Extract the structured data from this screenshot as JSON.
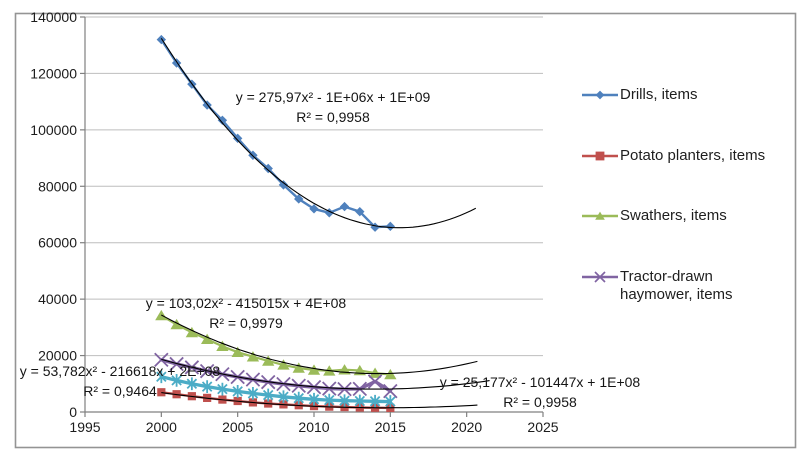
{
  "chart_data": {
    "type": "line",
    "title": "",
    "xlabel": "",
    "ylabel": "",
    "xlim": [
      1995,
      2025
    ],
    "ylim": [
      0,
      140000
    ],
    "grid": true,
    "legend_position": "right",
    "x_ticks": [
      "1995",
      "2000",
      "2005",
      "2010",
      "2015",
      "2020",
      "2025"
    ],
    "y_ticks": [
      "0",
      "20000",
      "40000",
      "60000",
      "80000",
      "100000",
      "120000",
      "140000"
    ],
    "y_tick_values": [
      0,
      20000,
      40000,
      60000,
      80000,
      100000,
      120000,
      140000
    ],
    "x_tick_values": [
      1995,
      2000,
      2005,
      2010,
      2015,
      2020,
      2025
    ],
    "years": [
      2000,
      2001,
      2002,
      2003,
      2004,
      2005,
      2006,
      2007,
      2008,
      2009,
      2010,
      2011,
      2012,
      2013,
      2014,
      2015
    ],
    "trendline_color": "#000000",
    "series": [
      {
        "name": "Drills, items",
        "color": "#4F81BD",
        "marker": "diamond",
        "in_legend": true,
        "line_width": 2.4,
        "values": [
          132000,
          123700,
          116200,
          108800,
          103400,
          97000,
          91000,
          86300,
          80500,
          75500,
          72000,
          70600,
          72800,
          71000,
          65500,
          65800
        ],
        "trendline": {
          "a": 276,
          "vertex_x": 2015.6,
          "vertex_y": 65300,
          "x_start": 2000,
          "x_end": 2020.6
        }
      },
      {
        "name": "Potato planters, items",
        "color": "#C0504D",
        "marker": "square",
        "in_legend": true,
        "line_width": 2.4,
        "values": [
          7000,
          6300,
          5600,
          5000,
          4400,
          3900,
          3400,
          3000,
          2700,
          2400,
          2100,
          1900,
          1750,
          1600,
          1500,
          1450
        ],
        "trendline": {
          "a": 25.2,
          "vertex_x": 2014.6,
          "vertex_y": 1500,
          "x_start": 2000,
          "x_end": 2020.7
        }
      },
      {
        "name": "Swathers, items",
        "color": "#9BBB59",
        "marker": "triangle",
        "in_legend": true,
        "line_width": 2.2,
        "values": [
          34200,
          31000,
          28200,
          25800,
          23300,
          21200,
          19600,
          18100,
          16700,
          15600,
          14900,
          14600,
          15000,
          14700,
          13800,
          13300
        ],
        "trendline": {
          "a": 103,
          "vertex_x": 2014.2,
          "vertex_y": 13600,
          "x_start": 2000,
          "x_end": 2020.7
        }
      },
      {
        "name": "Tractor-drawn haymower, items",
        "color": "#8064A2",
        "marker": "x",
        "in_legend": true,
        "line_width": 3.3,
        "values": [
          18500,
          17000,
          15800,
          14500,
          13400,
          12400,
          11500,
          10600,
          9900,
          9300,
          8800,
          8300,
          8100,
          8200,
          10800,
          7400
        ],
        "trendline": {
          "a": 53.8,
          "vertex_x": 2014,
          "vertex_y": 8100,
          "x_start": 2000,
          "x_end": 2021.5
        }
      },
      {
        "name": "",
        "color": "#4BACC6",
        "marker": "asterisk",
        "in_legend": false,
        "line_width": 3.3,
        "values": [
          12500,
          11200,
          10000,
          9000,
          8100,
          7300,
          6600,
          6000,
          5400,
          4900,
          4500,
          4200,
          4000,
          3900,
          3800,
          3700
        ],
        "trendline": null
      }
    ],
    "equations": [
      {
        "line1": "y = 275,97x² - 1E+06x + 1E+09",
        "line2": "R² = 0,9958"
      },
      {
        "line1": "y = 103,02x² - 415015x + 4E+08",
        "line2": "R² = 0,9979"
      },
      {
        "line1": "y = 53,782x² - 216618x + 2E+08",
        "line2": "R² = 0,9464"
      },
      {
        "line1": "y = 25,177x² - 101447x + 1E+08",
        "line2": "R² = 0,9958"
      }
    ]
  },
  "legend": {
    "items": [
      {
        "label": "Drills, items",
        "marker": "diamond",
        "color": "#4F81BD"
      },
      {
        "label": "Potato planters, items",
        "marker": "square",
        "color": "#C0504D"
      },
      {
        "label": "Swathers, items",
        "marker": "triangle",
        "color": "#9BBB59"
      },
      {
        "label": "Tractor-drawn haymower, items",
        "marker": "x",
        "color": "#8064A2"
      }
    ]
  }
}
